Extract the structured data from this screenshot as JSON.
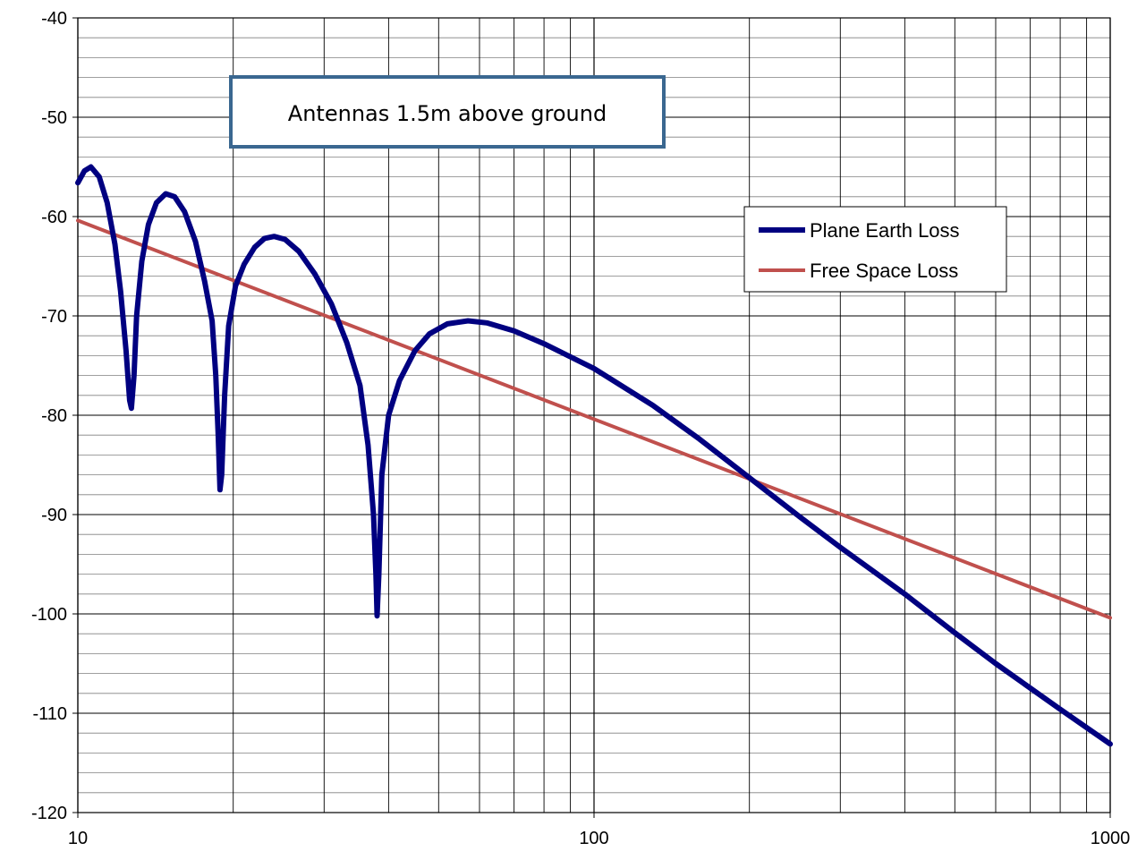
{
  "chart_data": {
    "type": "line",
    "x_scale": "log",
    "xlim": [
      10,
      1000
    ],
    "ylim": [
      -120,
      -40
    ],
    "x_tick_labels": [
      "10",
      "100",
      "1000"
    ],
    "y_tick_labels": [
      "-40",
      "-50",
      "-60",
      "-70",
      "-80",
      "-90",
      "-100",
      "-110",
      "-120"
    ],
    "grid": true,
    "legend_position": "right",
    "annotation": "Antennas 1.5m above ground",
    "series": [
      {
        "name": "Plane Earth Loss",
        "color": "#000080",
        "points": [
          [
            10.0,
            -56.6
          ],
          [
            10.3,
            -55.4
          ],
          [
            10.6,
            -55.0
          ],
          [
            11.0,
            -56.0
          ],
          [
            11.4,
            -58.6
          ],
          [
            11.8,
            -62.8
          ],
          [
            12.1,
            -67.5
          ],
          [
            12.4,
            -73.5
          ],
          [
            12.6,
            -78.5
          ],
          [
            12.7,
            -79.3
          ],
          [
            12.85,
            -76.0
          ],
          [
            13.0,
            -70.0
          ],
          [
            13.3,
            -64.5
          ],
          [
            13.7,
            -60.8
          ],
          [
            14.2,
            -58.6
          ],
          [
            14.8,
            -57.7
          ],
          [
            15.4,
            -58.0
          ],
          [
            16.1,
            -59.5
          ],
          [
            16.9,
            -62.5
          ],
          [
            17.6,
            -66.5
          ],
          [
            18.2,
            -70.5
          ],
          [
            18.5,
            -76.0
          ],
          [
            18.7,
            -82.0
          ],
          [
            18.85,
            -87.5
          ],
          [
            19.0,
            -86.0
          ],
          [
            19.25,
            -78.0
          ],
          [
            19.6,
            -71.0
          ],
          [
            20.2,
            -67.0
          ],
          [
            21.0,
            -64.8
          ],
          [
            22.0,
            -63.1
          ],
          [
            23.0,
            -62.2
          ],
          [
            24.0,
            -62.0
          ],
          [
            25.2,
            -62.3
          ],
          [
            26.8,
            -63.5
          ],
          [
            28.8,
            -65.8
          ],
          [
            31.0,
            -68.8
          ],
          [
            33.2,
            -72.7
          ],
          [
            35.2,
            -77.0
          ],
          [
            36.5,
            -83.0
          ],
          [
            37.4,
            -90.0
          ],
          [
            37.8,
            -96.0
          ],
          [
            38.0,
            -100.2
          ],
          [
            38.3,
            -96.0
          ],
          [
            38.8,
            -86.0
          ],
          [
            40.0,
            -80.0
          ],
          [
            42.0,
            -76.5
          ],
          [
            45.0,
            -73.5
          ],
          [
            48.0,
            -71.8
          ],
          [
            52.0,
            -70.8
          ],
          [
            57.0,
            -70.5
          ],
          [
            62.0,
            -70.7
          ],
          [
            70.0,
            -71.5
          ],
          [
            80.0,
            -72.8
          ],
          [
            100.0,
            -75.3
          ],
          [
            130.0,
            -79.0
          ],
          [
            160.0,
            -82.4
          ],
          [
            200.0,
            -86.3
          ],
          [
            250.0,
            -90.2
          ],
          [
            300.0,
            -93.3
          ],
          [
            400.0,
            -98.0
          ],
          [
            500.0,
            -101.9
          ],
          [
            600.0,
            -105.0
          ],
          [
            800.0,
            -109.6
          ],
          [
            1000.0,
            -113.1
          ]
        ]
      },
      {
        "name": "Free Space Loss",
        "color": "#C0504D",
        "points": [
          [
            10,
            -60.4
          ],
          [
            1000,
            -100.4
          ]
        ]
      }
    ]
  }
}
